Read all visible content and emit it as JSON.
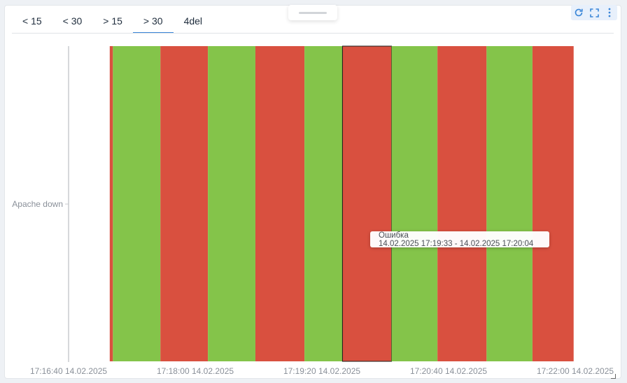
{
  "tabs": [
    {
      "label": "< 15",
      "active": false
    },
    {
      "label": "< 30",
      "active": false
    },
    {
      "label": "> 15",
      "active": false
    },
    {
      "label": "> 30",
      "active": true
    },
    {
      "label": "4del",
      "active": false
    }
  ],
  "controls": {
    "refresh_icon": "refresh-icon",
    "fullscreen_icon": "fullscreen-icon",
    "menu_icon": "kebab-menu-icon",
    "accent_color": "#3a86d8"
  },
  "chart_data": {
    "type": "timeline",
    "row_label": "Apache down",
    "x_tick_labels": [
      "17:16:40 14.02.2025",
      "17:18:00 14.02.2025",
      "17:19:20 14.02.2025",
      "17:20:40 14.02.2025",
      "17:22:00 14.02.2025"
    ],
    "xlim": [
      "2025-02-14 17:16:40",
      "2025-02-14 17:22:00"
    ],
    "status_colors": {
      "error": "#d9503f",
      "ok": "#84c44a"
    },
    "segments": [
      {
        "start": "2025-02-14 17:17:06",
        "end": "2025-02-14 17:17:08",
        "status": "error"
      },
      {
        "start": "2025-02-14 17:17:08",
        "end": "2025-02-14 17:17:38",
        "status": "ok"
      },
      {
        "start": "2025-02-14 17:17:38",
        "end": "2025-02-14 17:18:08",
        "status": "error"
      },
      {
        "start": "2025-02-14 17:18:08",
        "end": "2025-02-14 17:18:38",
        "status": "ok"
      },
      {
        "start": "2025-02-14 17:18:38",
        "end": "2025-02-14 17:19:09",
        "status": "error"
      },
      {
        "start": "2025-02-14 17:19:09",
        "end": "2025-02-14 17:19:33",
        "status": "ok"
      },
      {
        "start": "2025-02-14 17:19:33",
        "end": "2025-02-14 17:20:04",
        "status": "error",
        "highlighted": true
      },
      {
        "start": "2025-02-14 17:20:04",
        "end": "2025-02-14 17:20:33",
        "status": "ok"
      },
      {
        "start": "2025-02-14 17:20:33",
        "end": "2025-02-14 17:21:04",
        "status": "error"
      },
      {
        "start": "2025-02-14 17:21:04",
        "end": "2025-02-14 17:21:33",
        "status": "ok"
      },
      {
        "start": "2025-02-14 17:21:33",
        "end": "2025-02-14 17:21:59",
        "status": "error"
      }
    ]
  },
  "tooltip": {
    "title": "Ошибка",
    "range": "14.02.2025 17:19:33 - 14.02.2025 17:20:04"
  }
}
